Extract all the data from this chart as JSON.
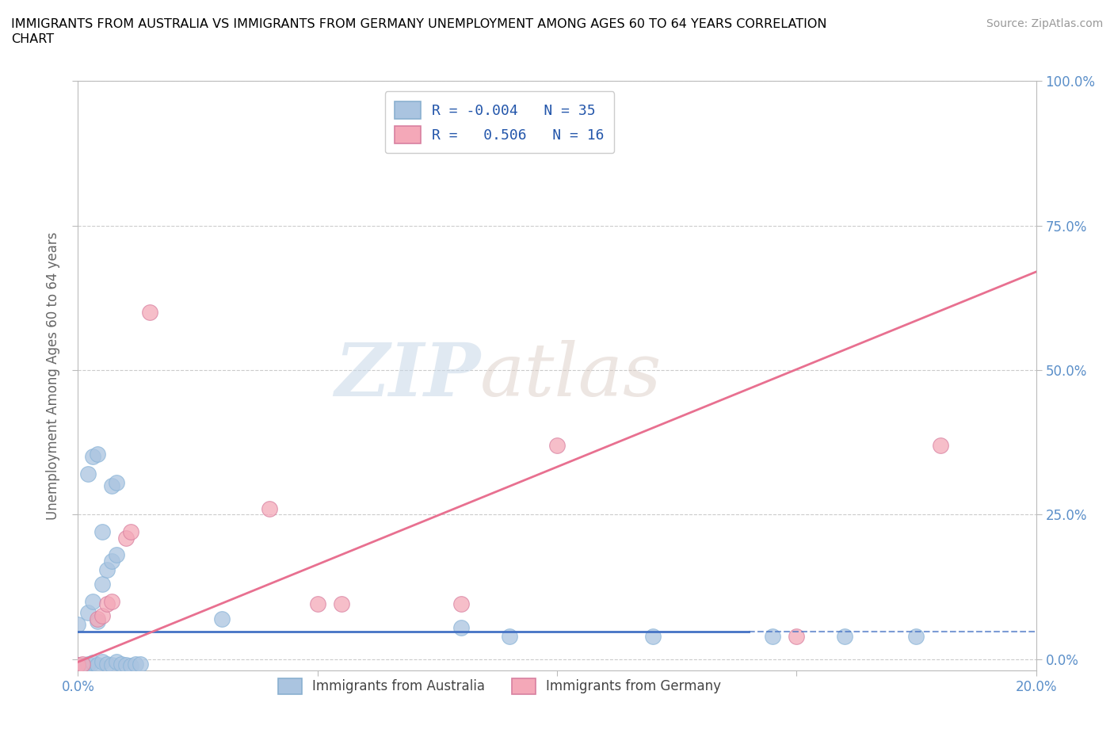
{
  "title": "IMMIGRANTS FROM AUSTRALIA VS IMMIGRANTS FROM GERMANY UNEMPLOYMENT AMONG AGES 60 TO 64 YEARS CORRELATION\nCHART",
  "source_text": "Source: ZipAtlas.com",
  "ylabel": "Unemployment Among Ages 60 to 64 years",
  "xlim": [
    0.0,
    0.2
  ],
  "ylim": [
    -0.02,
    1.0
  ],
  "ytick_labels": [
    "0.0%",
    "25.0%",
    "50.0%",
    "75.0%",
    "100.0%"
  ],
  "ytick_positions": [
    0.0,
    0.25,
    0.5,
    0.75,
    1.0
  ],
  "xtick_labels": [
    "0.0%",
    "",
    "",
    "",
    "20.0%"
  ],
  "xtick_positions": [
    0.0,
    0.05,
    0.1,
    0.15,
    0.2
  ],
  "australia_color": "#aac4e0",
  "germany_color": "#f4a8b8",
  "australia_line_color": "#4472C4",
  "germany_line_color": "#e87090",
  "australia_R": -0.004,
  "australia_N": 35,
  "germany_R": 0.506,
  "germany_N": 16,
  "watermark_zip": "ZIP",
  "watermark_atlas": "atlas",
  "grid_color": "#cccccc",
  "axis_color": "#bbbbbb",
  "tick_color": "#5b8fc9",
  "australia_scatter": [
    [
      0.0,
      -0.01
    ],
    [
      0.001,
      -0.012
    ],
    [
      0.002,
      -0.008
    ],
    [
      0.003,
      -0.006
    ],
    [
      0.004,
      -0.01
    ],
    [
      0.005,
      -0.005
    ],
    [
      0.006,
      -0.008
    ],
    [
      0.007,
      -0.01
    ],
    [
      0.008,
      -0.005
    ],
    [
      0.009,
      -0.008
    ],
    [
      0.01,
      -0.01
    ],
    [
      0.011,
      -0.012
    ],
    [
      0.012,
      -0.008
    ],
    [
      0.013,
      -0.008
    ],
    [
      0.0,
      0.06
    ],
    [
      0.002,
      0.08
    ],
    [
      0.003,
      0.1
    ],
    [
      0.004,
      0.065
    ],
    [
      0.005,
      0.13
    ],
    [
      0.006,
      0.155
    ],
    [
      0.007,
      0.17
    ],
    [
      0.008,
      0.18
    ],
    [
      0.002,
      0.32
    ],
    [
      0.003,
      0.35
    ],
    [
      0.004,
      0.355
    ],
    [
      0.005,
      0.22
    ],
    [
      0.007,
      0.3
    ],
    [
      0.008,
      0.305
    ],
    [
      0.03,
      0.07
    ],
    [
      0.08,
      0.055
    ],
    [
      0.09,
      0.04
    ],
    [
      0.12,
      0.04
    ],
    [
      0.145,
      0.04
    ],
    [
      0.16,
      0.04
    ],
    [
      0.175,
      0.04
    ]
  ],
  "germany_scatter": [
    [
      0.0,
      -0.01
    ],
    [
      0.001,
      -0.008
    ],
    [
      0.004,
      0.07
    ],
    [
      0.005,
      0.075
    ],
    [
      0.006,
      0.095
    ],
    [
      0.007,
      0.1
    ],
    [
      0.01,
      0.21
    ],
    [
      0.011,
      0.22
    ],
    [
      0.015,
      0.6
    ],
    [
      0.04,
      0.26
    ],
    [
      0.05,
      0.095
    ],
    [
      0.055,
      0.095
    ],
    [
      0.08,
      0.095
    ],
    [
      0.1,
      0.37
    ],
    [
      0.15,
      0.04
    ],
    [
      0.18,
      0.37
    ]
  ]
}
